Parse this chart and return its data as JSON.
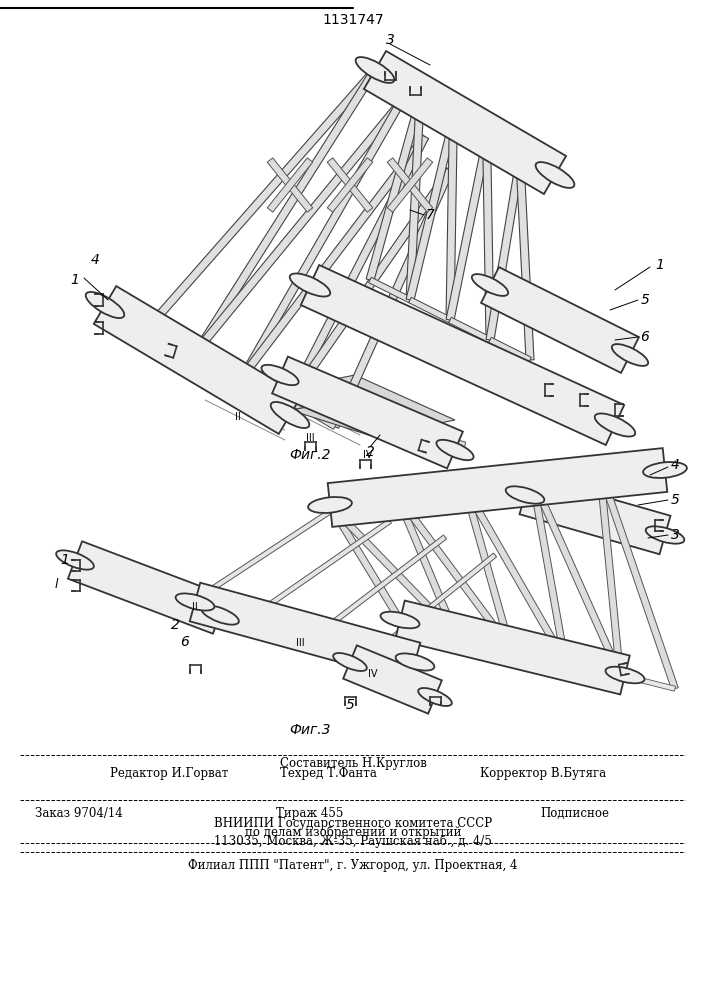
{
  "title_number": "1131747",
  "fig2_label": "Фиг.2",
  "fig3_label": "Фиг.3",
  "footer_sestavitel": "Составитель Н.Круглов",
  "footer_redaktor": "Редактор И.Горват",
  "footer_tehred": "Техред Т.Фанта",
  "footer_korrektor": "Корректор В.Бутяга",
  "footer_zakaz": "Заказ 9704/14",
  "footer_tirazh": "Тираж 455",
  "footer_podpisnoe": "Подписное",
  "footer_vniipи": "ВНИИПИ Государственного комитета СССР",
  "footer_po_delam": "по делам изобретений и открытий",
  "footer_address": "113035, Москва, Ж-35, Раушская наб., д. 4/5",
  "footer_filial": "Филиал ППП \"Патент\", г. Ужгород, ул. Проектная, 4",
  "bg_color": "#ffffff",
  "line_color": "#000000"
}
